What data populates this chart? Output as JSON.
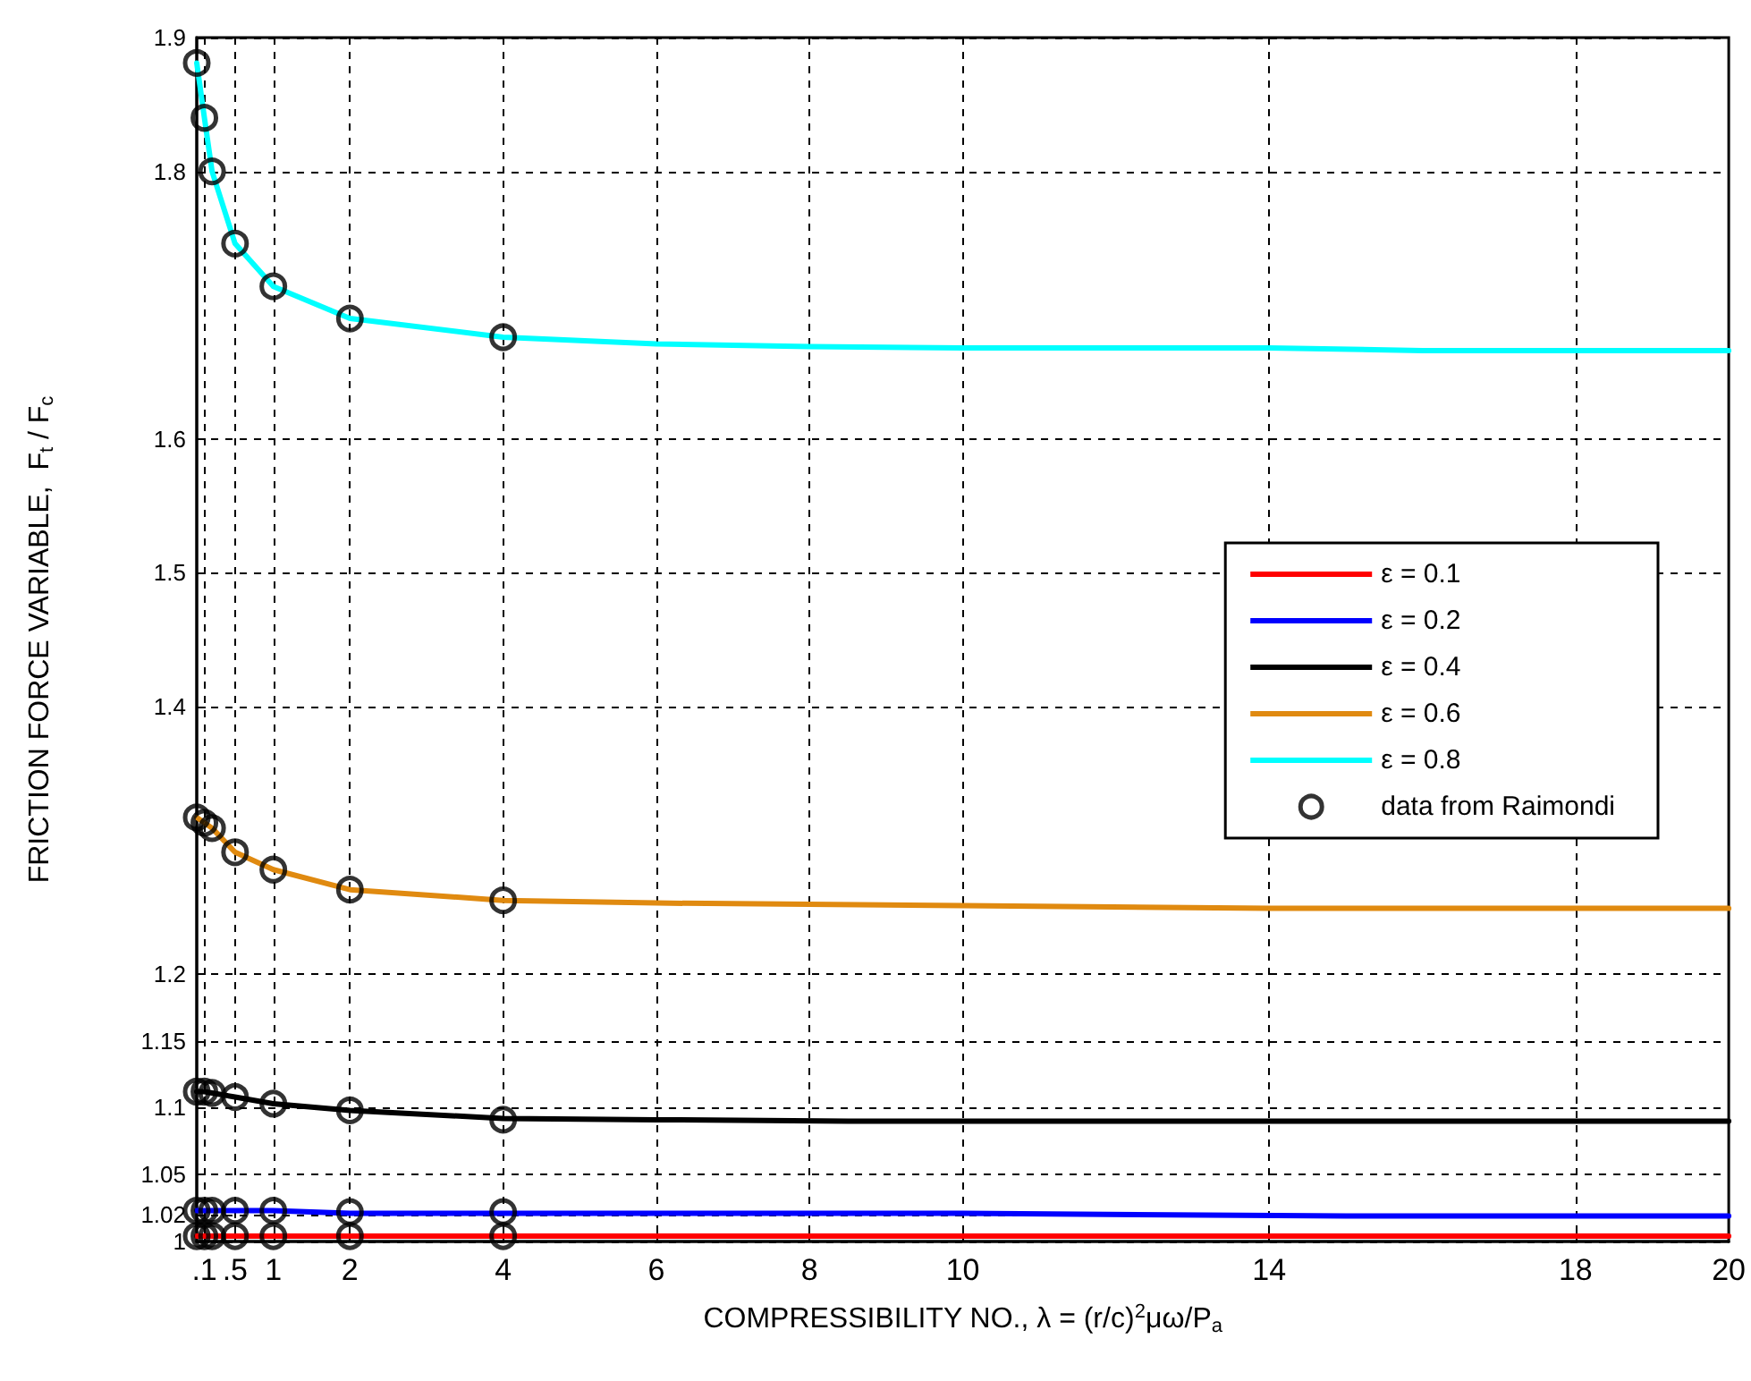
{
  "chart_data": {
    "type": "line",
    "xlabel": "COMPRESSIBILITY NO., λ = (r/c)$^{2}$μω/P$_{a}$",
    "ylabel": "FRICTION FORCE VARIABLE,  F$_{t}$ / F$_{c}$",
    "xlim": [
      0,
      20
    ],
    "xticks": [
      {
        "value": 0.1,
        "label": ".1"
      },
      {
        "value": 0.5,
        "label": ".5"
      },
      1,
      2,
      4,
      6,
      8,
      10,
      14,
      18,
      20
    ],
    "ylim": [
      1,
      1.9
    ],
    "yticks": [
      1,
      1.02,
      1.05,
      1.1,
      1.15,
      1.2,
      1.4,
      1.5,
      1.6,
      1.8,
      1.9
    ],
    "grid": true,
    "legend": "right",
    "line_style": "solid",
    "marker": "none",
    "series": [
      {
        "name": "ε = 0.1",
        "color": "#ff0000",
        "x": [
          0,
          0.5,
          1,
          2,
          4,
          10,
          20
        ],
        "values": [
          1.004,
          1.004,
          1.004,
          1.004,
          1.004,
          1.004,
          1.004
        ]
      },
      {
        "name": "ε = 0.2",
        "color": "#0000ff",
        "x": [
          0,
          0.5,
          1,
          2,
          4,
          10,
          15,
          20
        ],
        "values": [
          1.023,
          1.023,
          1.023,
          1.021,
          1.021,
          1.021,
          1.019,
          1.019
        ]
      },
      {
        "name": "ε = 0.4",
        "color": "#000000",
        "x": [
          0,
          0.1,
          0.2,
          0.5,
          1,
          2,
          4,
          6,
          8.5,
          14,
          20
        ],
        "values": [
          1.112,
          1.112,
          1.111,
          1.108,
          1.103,
          1.098,
          1.092,
          1.091,
          1.09,
          1.09,
          1.09
        ]
      },
      {
        "name": "ε = 0.6",
        "color": "#e08a10",
        "x": [
          0,
          0.1,
          0.2,
          0.5,
          1,
          2,
          4,
          6,
          10,
          14,
          20
        ],
        "values": [
          1.317,
          1.313,
          1.309,
          1.291,
          1.278,
          1.263,
          1.255,
          1.253,
          1.251,
          1.249,
          1.249
        ]
      },
      {
        "name": "ε = 0.8",
        "color": "#00ffff",
        "x": [
          0,
          0.1,
          0.2,
          0.5,
          1,
          2,
          4,
          6,
          8,
          10,
          14,
          16,
          20
        ],
        "values": [
          1.881,
          1.84,
          1.8,
          1.746,
          1.714,
          1.69,
          1.676,
          1.671,
          1.669,
          1.668,
          1.668,
          1.666,
          1.666
        ]
      },
      {
        "name": "data from Raimondi",
        "type": "scatter",
        "marker": "circle",
        "color": "#000000",
        "x": [
          0,
          0.1,
          0.2,
          0.5,
          1,
          2,
          4,
          0,
          0.1,
          0.2,
          0.5,
          1,
          2,
          4,
          0,
          0.1,
          0.2,
          0.5,
          1,
          2,
          4,
          0,
          0.1,
          0.2,
          0.5,
          1,
          2,
          4,
          0,
          0.1,
          0.2,
          0.5,
          1,
          2,
          4
        ],
        "values": [
          1.004,
          1.004,
          1.004,
          1.004,
          1.004,
          1.004,
          1.004,
          1.023,
          1.023,
          1.023,
          1.023,
          1.023,
          1.022,
          1.022,
          1.112,
          1.112,
          1.111,
          1.108,
          1.103,
          1.098,
          1.091,
          1.317,
          1.313,
          1.309,
          1.291,
          1.278,
          1.263,
          1.255,
          1.881,
          1.84,
          1.8,
          1.746,
          1.714,
          1.69,
          1.676
        ]
      }
    ]
  }
}
